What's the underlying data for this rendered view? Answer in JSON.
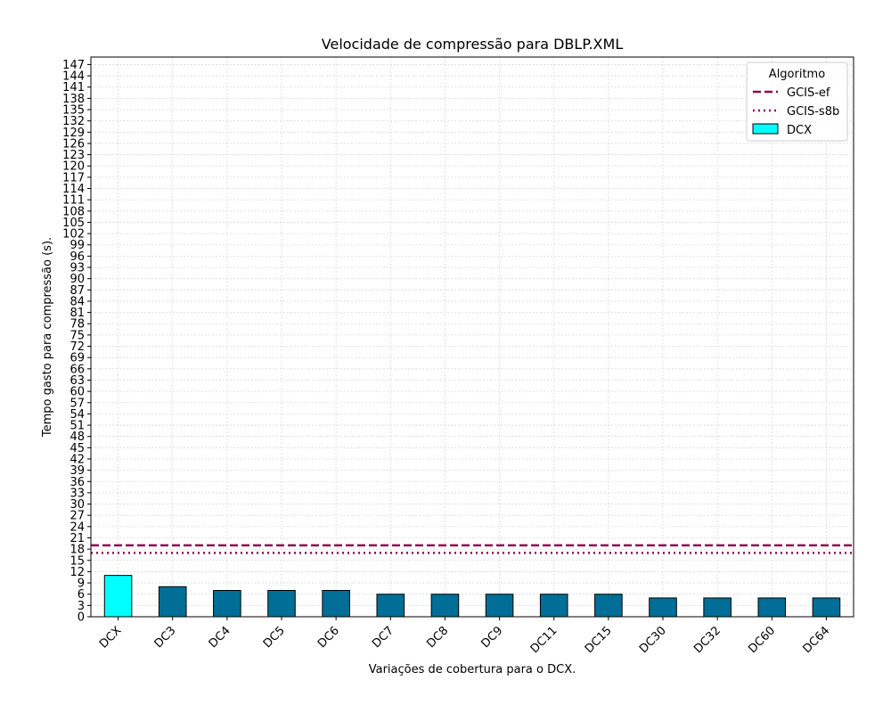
{
  "chart_data": {
    "type": "bar",
    "title": "Velocidade de compressão para  DBLP.XML",
    "xlabel": "Variações de cobertura para o DCX.",
    "ylabel": "Tempo gasto para compressão (s).",
    "categories": [
      "DCX",
      "DC3",
      "DC4",
      "DC5",
      "DC6",
      "DC7",
      "DC8",
      "DC9",
      "DC11",
      "DC15",
      "DC30",
      "DC32",
      "DC60",
      "DC64"
    ],
    "values": [
      11,
      8,
      7,
      7,
      7,
      6,
      6,
      6,
      6,
      6,
      5,
      5,
      5,
      5
    ],
    "bar_colors": [
      "#00ffff",
      "#006e96",
      "#006e96",
      "#006e96",
      "#006e96",
      "#006e96",
      "#006e96",
      "#006e96",
      "#006e96",
      "#006e96",
      "#006e96",
      "#006e96",
      "#006e96",
      "#006e96"
    ],
    "ylim": [
      0,
      149
    ],
    "yticks": [
      0,
      3,
      6,
      9,
      12,
      15,
      18,
      21,
      24,
      27,
      30,
      33,
      36,
      39,
      42,
      45,
      48,
      51,
      54,
      57,
      60,
      63,
      66,
      69,
      72,
      75,
      78,
      81,
      84,
      87,
      90,
      93,
      96,
      99,
      102,
      105,
      108,
      111,
      114,
      117,
      120,
      123,
      126,
      129,
      132,
      135,
      138,
      141,
      144,
      147
    ],
    "grid": true,
    "reference_lines": [
      {
        "name": "GCIS-ef",
        "value": 19,
        "style": "dashed",
        "color": "#8b0a50"
      },
      {
        "name": "GCIS-s8b",
        "value": 17,
        "style": "dotted",
        "color": "#8b0a50"
      }
    ],
    "legend": {
      "title": "Algoritmo",
      "position": "top-right",
      "entries": [
        {
          "label": "GCIS-ef",
          "kind": "dashed-line",
          "color": "#8b0a50"
        },
        {
          "label": "GCIS-s8b",
          "kind": "dotted-line",
          "color": "#8b0a50"
        },
        {
          "label": "DCX",
          "kind": "bar",
          "color": "#00ffff"
        }
      ]
    }
  }
}
